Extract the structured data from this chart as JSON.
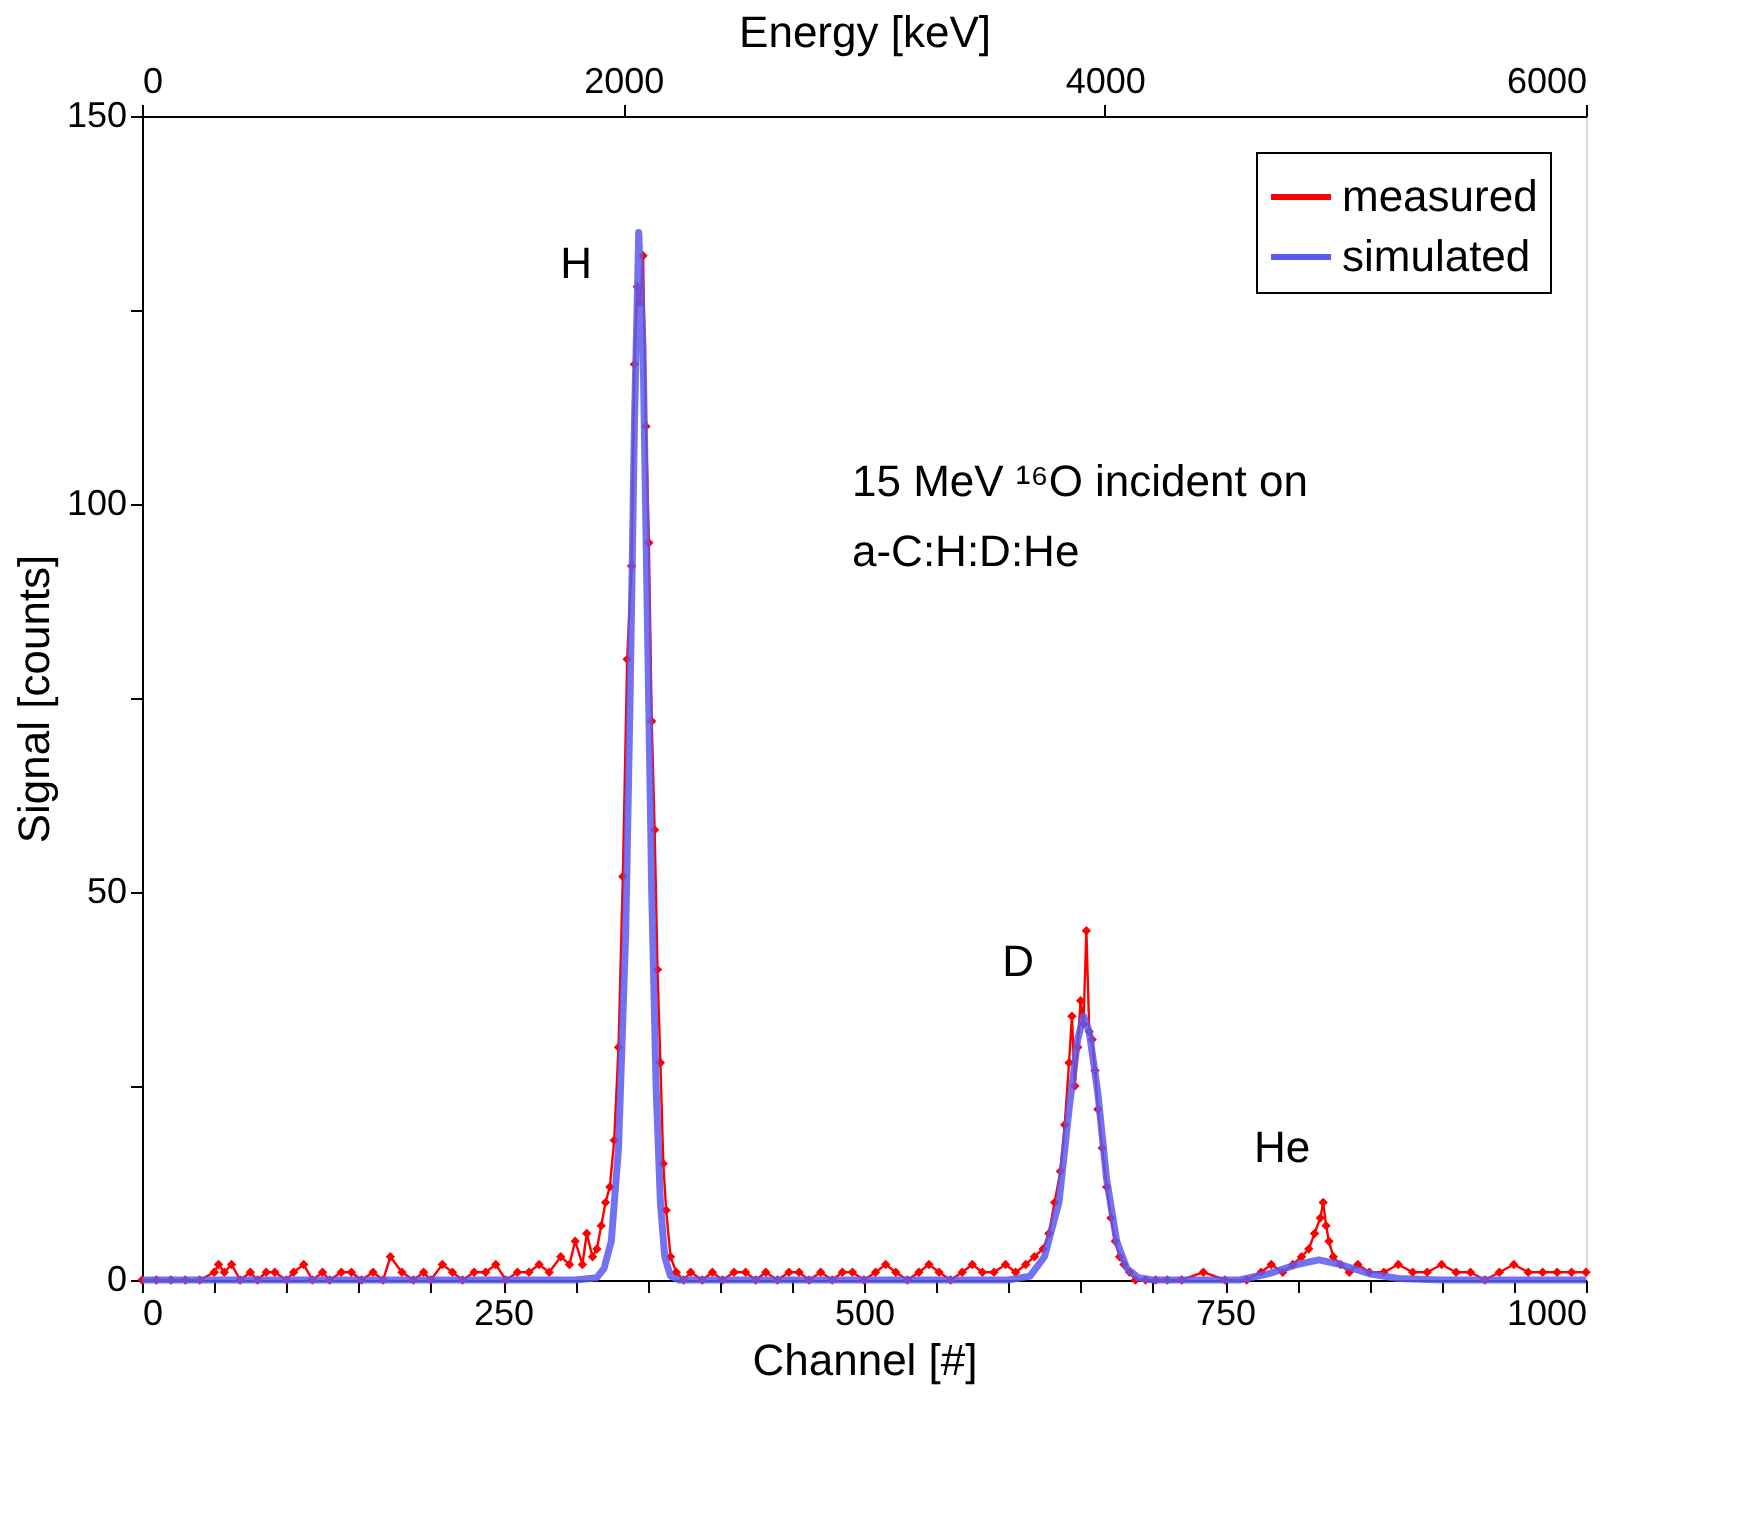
{
  "chart_data": {
    "type": "line",
    "xlabel": "Channel [#]",
    "ylabel": "Signal [counts]",
    "x2label": "Energy [keV]",
    "xlim": [
      0,
      1000
    ],
    "xticks": [
      0,
      {
        "value": 50,
        "label": null
      },
      {
        "value": 100,
        "label": null
      },
      {
        "value": 150,
        "label": null
      },
      {
        "value": 200,
        "label": null
      },
      250,
      {
        "value": 300,
        "label": null
      },
      {
        "value": 350,
        "label": null
      },
      {
        "value": 400,
        "label": null
      },
      {
        "value": 450,
        "label": null
      },
      500,
      {
        "value": 550,
        "label": null
      },
      {
        "value": 600,
        "label": null
      },
      {
        "value": 650,
        "label": null
      },
      {
        "value": 700,
        "label": null
      },
      750,
      {
        "value": 800,
        "label": null
      },
      {
        "value": 850,
        "label": null
      },
      {
        "value": 900,
        "label": null
      },
      {
        "value": 950,
        "label": null
      },
      1000
    ],
    "ylim": [
      0,
      150
    ],
    "yticks": [
      0,
      {
        "value": 25,
        "label": null
      },
      50,
      {
        "value": 75,
        "label": null
      },
      100,
      {
        "value": 125,
        "label": null
      },
      150
    ],
    "x2lim": [
      0,
      6000
    ],
    "x2ticks": [
      0,
      2000,
      4000,
      6000
    ],
    "grid": false,
    "legend": "top right",
    "line_style": "solid",
    "annotations": [
      "H",
      "D",
      "He",
      "15 MeV ¹⁶O incident on",
      "a-C:H:D:He"
    ],
    "series": [
      {
        "name": "measured",
        "color": "#ff0000",
        "marker": "diamond",
        "x": [
          0,
          10,
          20,
          30,
          40,
          50,
          53,
          57,
          62,
          68,
          75,
          80,
          86,
          92,
          100,
          105,
          112,
          118,
          125,
          130,
          138,
          145,
          152,
          160,
          167,
          172,
          180,
          188,
          195,
          200,
          208,
          215,
          222,
          230,
          238,
          245,
          252,
          260,
          268,
          275,
          282,
          290,
          296,
          300,
          305,
          308,
          312,
          315,
          318,
          321,
          324,
          327,
          330,
          333,
          336,
          339,
          341,
          343,
          345,
          347,
          349,
          351,
          353,
          355,
          357,
          359,
          361,
          363,
          366,
          370,
          375,
          380,
          388,
          395,
          402,
          410,
          418,
          425,
          432,
          440,
          448,
          455,
          462,
          470,
          478,
          485,
          492,
          500,
          508,
          515,
          522,
          530,
          538,
          545,
          552,
          560,
          568,
          575,
          582,
          590,
          598,
          605,
          612,
          618,
          624,
          628,
          632,
          636,
          639,
          642,
          644,
          646,
          648,
          650,
          652,
          654,
          656,
          658,
          660,
          662,
          665,
          668,
          671,
          674,
          677,
          680,
          684,
          688,
          695,
          702,
          710,
          720,
          735,
          750,
          765,
          775,
          782,
          790,
          797,
          803,
          808,
          812,
          816,
          818,
          820,
          822,
          825,
          830,
          836,
          842,
          850,
          860,
          870,
          880,
          890,
          900,
          910,
          920,
          930,
          940,
          950,
          960,
          970,
          980,
          990,
          1000
        ],
        "values": [
          0,
          0,
          0,
          0,
          0,
          1,
          2,
          1,
          2,
          0,
          1,
          0,
          1,
          1,
          0,
          1,
          2,
          0,
          1,
          0,
          1,
          1,
          0,
          1,
          0,
          3,
          1,
          0,
          1,
          0,
          2,
          1,
          0,
          1,
          1,
          2,
          0,
          1,
          1,
          2,
          1,
          3,
          2,
          5,
          2,
          6,
          3,
          4,
          7,
          10,
          12,
          18,
          30,
          52,
          80,
          92,
          118,
          128,
          126,
          132,
          110,
          95,
          72,
          58,
          40,
          28,
          15,
          9,
          3,
          1,
          0,
          1,
          0,
          1,
          0,
          1,
          1,
          0,
          1,
          0,
          1,
          1,
          0,
          1,
          0,
          1,
          1,
          0,
          1,
          2,
          1,
          0,
          1,
          2,
          1,
          0,
          1,
          2,
          1,
          1,
          2,
          1,
          2,
          3,
          4,
          6,
          10,
          14,
          20,
          28,
          34,
          25,
          30,
          36,
          33,
          45,
          32,
          31,
          27,
          22,
          17,
          12,
          8,
          5,
          3,
          2,
          1,
          0,
          0,
          0,
          0,
          0,
          1,
          0,
          0,
          1,
          2,
          1,
          2,
          3,
          4,
          6,
          8,
          10,
          7,
          5,
          3,
          2,
          1,
          2,
          1,
          1,
          2,
          1,
          1,
          2,
          1,
          1,
          0,
          1,
          2,
          1,
          1,
          1,
          1,
          1
        ]
      },
      {
        "name": "simulated",
        "color": "#5a5af0",
        "marker": "none",
        "x": [
          0,
          300,
          315,
          320,
          325,
          330,
          335,
          338,
          341,
          344,
          347,
          350,
          353,
          356,
          359,
          362,
          366,
          372,
          600,
          615,
          625,
          635,
          642,
          648,
          652,
          656,
          662,
          668,
          675,
          682,
          690,
          700,
          760,
          780,
          800,
          815,
          830,
          850,
          870,
          900,
          1000
        ],
        "values": [
          0,
          0,
          0.3,
          1.5,
          5,
          17,
          45,
          75,
          110,
          135,
          120,
          85,
          50,
          25,
          10,
          3,
          0.5,
          0,
          0,
          0.5,
          3,
          10,
          22,
          31,
          34,
          32,
          24,
          13,
          5,
          1.5,
          0.3,
          0,
          0,
          0.8,
          2,
          2.6,
          2,
          0.8,
          0.2,
          0,
          0
        ]
      }
    ]
  }
}
